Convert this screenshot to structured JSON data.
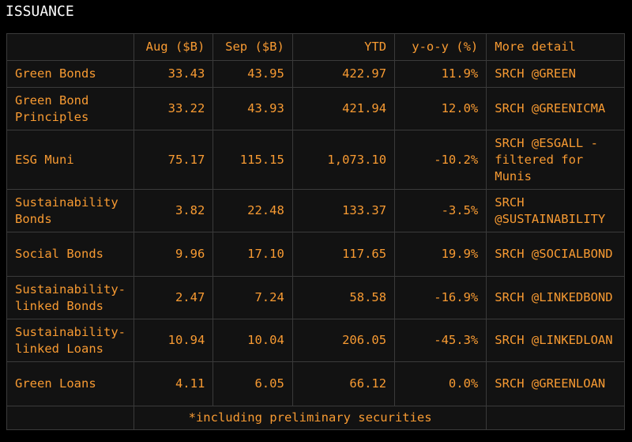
{
  "title": "ISSUANCE",
  "columns": [
    "",
    "Aug ($B)",
    "Sep ($B)",
    "YTD",
    "y-o-y (%)",
    "More detail"
  ],
  "rows": [
    {
      "name": "Green Bonds",
      "aug": "33.43",
      "sep": "43.95",
      "ytd": "422.97",
      "yoy": "11.9%",
      "detail": "SRCH @GREEN"
    },
    {
      "name": "Green Bond Principles",
      "aug": "33.22",
      "sep": "43.93",
      "ytd": "421.94",
      "yoy": "12.0%",
      "detail": "SRCH @GREENICMA"
    },
    {
      "name": "ESG Muni",
      "aug": "75.17",
      "sep": "115.15",
      "ytd": "1,073.10",
      "yoy": "-10.2%",
      "detail": "SRCH @ESGALL - filtered for Munis"
    },
    {
      "name": "Sustainability Bonds",
      "aug": "3.82",
      "sep": "22.48",
      "ytd": "133.37",
      "yoy": "-3.5%",
      "detail": "SRCH @SUSTAINABILITY"
    },
    {
      "name": "Social Bonds",
      "aug": "9.96",
      "sep": "17.10",
      "ytd": "117.65",
      "yoy": "19.9%",
      "detail": "SRCH @SOCIALBOND"
    },
    {
      "name": "Sustainability-linked Bonds",
      "aug": "2.47",
      "sep": "7.24",
      "ytd": "58.58",
      "yoy": "-16.9%",
      "detail": "SRCH @LINKEDBOND"
    },
    {
      "name": "Sustainability-linked Loans",
      "aug": "10.94",
      "sep": "10.04",
      "ytd": "206.05",
      "yoy": "-45.3%",
      "detail": "SRCH @LINKEDLOAN"
    },
    {
      "name": "Green Loans",
      "aug": "4.11",
      "sep": "6.05",
      "ytd": "66.12",
      "yoy": "0.0%",
      "detail": "SRCH @GREENLOAN"
    }
  ],
  "footnote": "*including preliminary securities"
}
